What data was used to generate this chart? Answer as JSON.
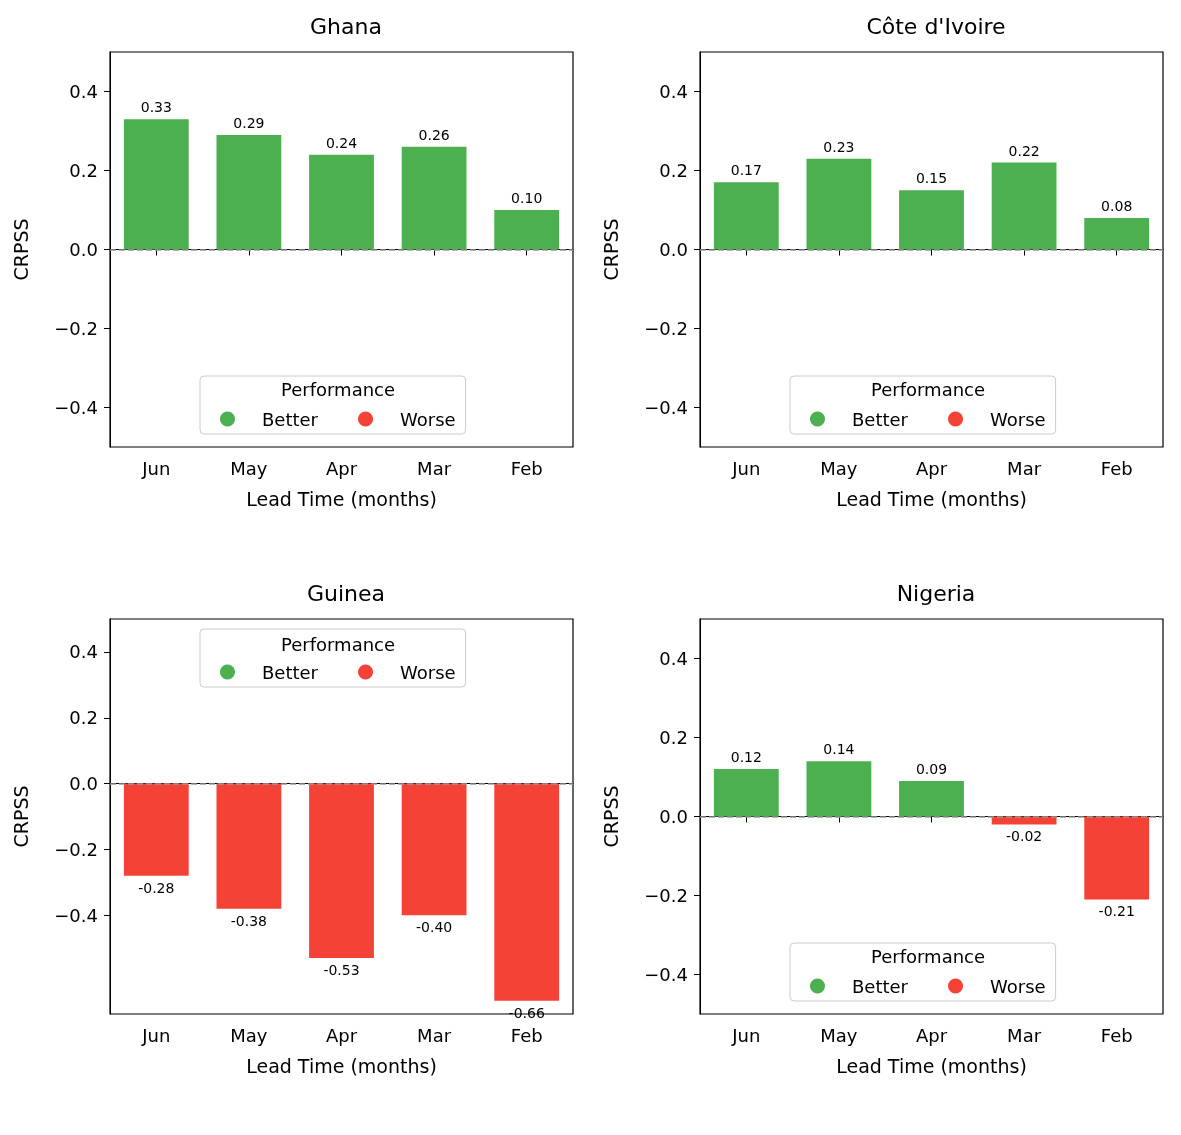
{
  "chart_data": [
    {
      "type": "bar",
      "title": "Ghana",
      "xlabel": "Lead Time (months)",
      "ylabel": "CRPSS",
      "legend_title": "Performance",
      "legend": "bottom",
      "grid": false,
      "categories": [
        "Jun",
        "May",
        "Apr",
        "Mar",
        "Feb"
      ],
      "ylim": [
        -0.5,
        0.5
      ],
      "yticks": [
        {
          "value": -0.4,
          "label": "−0.4"
        },
        {
          "value": -0.2,
          "label": "−0.2"
        },
        {
          "value": 0,
          "label": "0.0"
        },
        {
          "value": 0.2,
          "label": "0.2"
        },
        {
          "value": 0.4,
          "label": "0.4"
        }
      ],
      "ref_lines": [
        {
          "axis": "y",
          "value": 0,
          "color": "#999999",
          "line_style": "dashed"
        }
      ],
      "series": [
        {
          "name": "Better",
          "color": "#4caf50",
          "values": [
            0.33,
            0.29,
            0.24,
            0.26,
            0.1
          ],
          "value_labels": [
            "0.33",
            "0.29",
            "0.24",
            "0.26",
            "0.10"
          ]
        },
        {
          "name": "Worse",
          "color": "#f44336",
          "values": [
            null,
            null,
            null,
            null,
            null
          ],
          "value_labels": [
            null,
            null,
            null,
            null,
            null
          ]
        }
      ]
    },
    {
      "type": "bar",
      "title": "Côte d'Ivoire",
      "xlabel": "Lead Time (months)",
      "ylabel": "CRPSS",
      "legend_title": "Performance",
      "legend": "bottom",
      "grid": false,
      "categories": [
        "Jun",
        "May",
        "Apr",
        "Mar",
        "Feb"
      ],
      "ylim": [
        -0.5,
        0.5
      ],
      "yticks": [
        {
          "value": -0.4,
          "label": "−0.4"
        },
        {
          "value": -0.2,
          "label": "−0.2"
        },
        {
          "value": 0,
          "label": "0.0"
        },
        {
          "value": 0.2,
          "label": "0.2"
        },
        {
          "value": 0.4,
          "label": "0.4"
        }
      ],
      "ref_lines": [
        {
          "axis": "y",
          "value": 0,
          "color": "#999999",
          "line_style": "dashed"
        }
      ],
      "series": [
        {
          "name": "Better",
          "color": "#4caf50",
          "values": [
            0.17,
            0.23,
            0.15,
            0.22,
            0.08
          ],
          "value_labels": [
            "0.17",
            "0.23",
            "0.15",
            "0.22",
            "0.08"
          ]
        },
        {
          "name": "Worse",
          "color": "#f44336",
          "values": [
            null,
            null,
            null,
            null,
            null
          ],
          "value_labels": [
            null,
            null,
            null,
            null,
            null
          ]
        }
      ]
    },
    {
      "type": "bar",
      "title": "Guinea",
      "xlabel": "Lead Time (months)",
      "ylabel": "CRPSS",
      "legend_title": "Performance",
      "legend": "top",
      "grid": false,
      "categories": [
        "Jun",
        "May",
        "Apr",
        "Mar",
        "Feb"
      ],
      "ylim": [
        -0.7,
        0.5
      ],
      "yticks": [
        {
          "value": -0.4,
          "label": "−0.4"
        },
        {
          "value": -0.2,
          "label": "−0.2"
        },
        {
          "value": 0,
          "label": "0.0"
        },
        {
          "value": 0.2,
          "label": "0.2"
        },
        {
          "value": 0.4,
          "label": "0.4"
        }
      ],
      "ref_lines": [
        {
          "axis": "y",
          "value": 0,
          "color": "#999999",
          "line_style": "dashed"
        }
      ],
      "series": [
        {
          "name": "Better",
          "color": "#4caf50",
          "values": [
            null,
            null,
            null,
            null,
            null
          ],
          "value_labels": [
            null,
            null,
            null,
            null,
            null
          ]
        },
        {
          "name": "Worse",
          "color": "#f44336",
          "values": [
            -0.28,
            -0.38,
            -0.53,
            -0.4,
            -0.66
          ],
          "value_labels": [
            "-0.28",
            "-0.38",
            "-0.53",
            "-0.40",
            "-0.66"
          ]
        }
      ]
    },
    {
      "type": "bar",
      "title": "Nigeria",
      "xlabel": "Lead Time (months)",
      "ylabel": "CRPSS",
      "legend_title": "Performance",
      "legend": "bottom",
      "grid": false,
      "categories": [
        "Jun",
        "May",
        "Apr",
        "Mar",
        "Feb"
      ],
      "ylim": [
        -0.5,
        0.5
      ],
      "yticks": [
        {
          "value": -0.4,
          "label": "−0.4"
        },
        {
          "value": -0.2,
          "label": "−0.2"
        },
        {
          "value": 0,
          "label": "0.0"
        },
        {
          "value": 0.2,
          "label": "0.2"
        },
        {
          "value": 0.4,
          "label": "0.4"
        }
      ],
      "ref_lines": [
        {
          "axis": "y",
          "value": 0,
          "color": "#999999",
          "line_style": "dashed"
        }
      ],
      "series": [
        {
          "name": "Better",
          "color": "#4caf50",
          "values": [
            0.12,
            0.14,
            0.09,
            null,
            null
          ],
          "value_labels": [
            "0.12",
            "0.14",
            "0.09",
            null,
            null
          ]
        },
        {
          "name": "Worse",
          "color": "#f44336",
          "values": [
            null,
            null,
            null,
            -0.02,
            -0.21
          ],
          "value_labels": [
            null,
            null,
            null,
            "-0.02",
            "-0.21"
          ]
        }
      ]
    }
  ]
}
